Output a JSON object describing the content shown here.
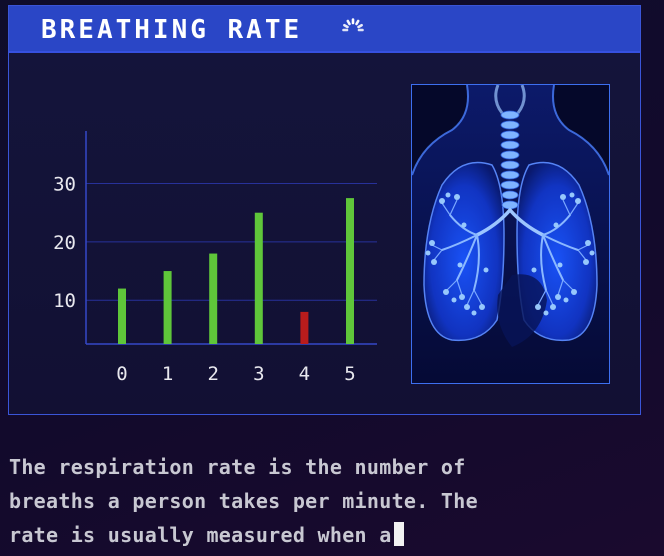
{
  "header": {
    "title": "BREATHING RATE",
    "icon": "loading-spinner-icon"
  },
  "colors": {
    "header_bg": "#2a46c6",
    "panel_border": "#3a55d8",
    "bar_normal": "#5fc63a",
    "bar_alert": "#b81c1c",
    "grid": "#27319a",
    "axis": "#3548c8"
  },
  "chart_data": {
    "type": "bar",
    "categories": [
      "0",
      "1",
      "2",
      "3",
      "4",
      "5"
    ],
    "values": [
      12,
      15,
      18,
      25,
      8,
      27.5
    ],
    "highlight": [
      false,
      false,
      false,
      false,
      true,
      false
    ],
    "yticks": [
      10,
      20,
      30
    ],
    "ylim": [
      2.5,
      39
    ],
    "grid": true,
    "title": "",
    "xlabel": "",
    "ylabel": ""
  },
  "image": {
    "subject": "lungs-icon"
  },
  "description": {
    "lines": [
      "The respiration rate is the number of",
      "breaths a person takes per minute. The",
      "rate is usually measured when a"
    ]
  }
}
